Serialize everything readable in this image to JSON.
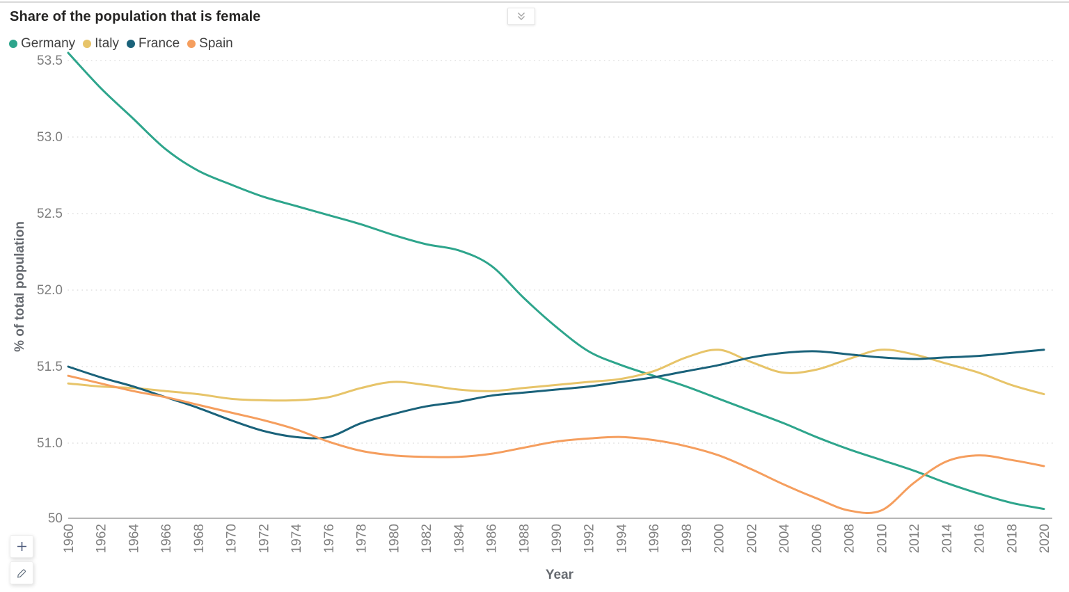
{
  "header": {
    "title": "Share of the population that is female",
    "collapse_icon": "double-chevron-down"
  },
  "toolbar": {
    "zoom_in_icon": "plus",
    "edit_icon": "pencil"
  },
  "colors": {
    "title_text": "#252423",
    "legend_text": "#404040",
    "axis_tick_text": "#7f7f7f",
    "axis_title_text": "#666a70",
    "gridline": "#e3e3e3",
    "axis_line": "#9e9e9e",
    "plus_icon": "#4d5b7c",
    "pencil_icon": "#5d6b7a",
    "chevron_icon": "#a3a3a3",
    "button_border": "#e4e4e4"
  },
  "chart_data": {
    "type": "line",
    "title": "Share of the population that is female",
    "xlabel": "Year",
    "ylabel": "% of total population",
    "legend_position": "top",
    "grid": "horizontal-dotted",
    "ylim": [
      50,
      53.5
    ],
    "x": [
      1960,
      1962,
      1964,
      1966,
      1968,
      1970,
      1972,
      1974,
      1976,
      1978,
      1980,
      1982,
      1984,
      1986,
      1988,
      1990,
      1992,
      1994,
      1996,
      1998,
      2000,
      2002,
      2004,
      2006,
      2008,
      2010,
      2012,
      2014,
      2016,
      2018,
      2020
    ],
    "y_ticks": [
      {
        "label": "53.5",
        "value": 53.5
      },
      {
        "label": "53.0",
        "value": 53.0
      },
      {
        "label": "52.5",
        "value": 52.5
      },
      {
        "label": "52.0",
        "value": 52.0
      },
      {
        "label": "51.5",
        "value": 51.5
      },
      {
        "label": "51.0",
        "value": 51.0
      },
      {
        "label": "50",
        "value": 50
      }
    ],
    "series": [
      {
        "name": "Germany",
        "color": "#2EA58C",
        "values": [
          53.55,
          53.32,
          53.12,
          52.92,
          52.78,
          52.69,
          52.61,
          52.55,
          52.49,
          52.43,
          52.36,
          52.3,
          52.26,
          52.16,
          51.95,
          51.76,
          51.6,
          51.51,
          51.44,
          51.37,
          51.29,
          51.21,
          51.13,
          51.04,
          50.96,
          50.89,
          50.82,
          50.74,
          50.67,
          50.61,
          50.57
        ]
      },
      {
        "name": "Italy",
        "color": "#E7C469",
        "values": [
          51.39,
          51.37,
          51.36,
          51.34,
          51.32,
          51.29,
          51.28,
          51.28,
          51.3,
          51.36,
          51.4,
          51.38,
          51.35,
          51.34,
          51.36,
          51.38,
          51.4,
          51.42,
          51.47,
          51.56,
          51.61,
          51.53,
          51.46,
          51.48,
          51.55,
          51.61,
          51.58,
          51.52,
          51.46,
          51.38,
          51.32
        ]
      },
      {
        "name": "France",
        "color": "#1A627A",
        "values": [
          51.5,
          51.43,
          51.37,
          51.3,
          51.23,
          51.15,
          51.08,
          51.04,
          51.04,
          51.13,
          51.19,
          51.24,
          51.27,
          51.31,
          51.33,
          51.35,
          51.37,
          51.4,
          51.43,
          51.47,
          51.51,
          51.56,
          51.59,
          51.6,
          51.58,
          51.56,
          51.55,
          51.56,
          51.57,
          51.59,
          51.61
        ]
      },
      {
        "name": "Spain",
        "color": "#F59E5E",
        "values": [
          51.44,
          51.39,
          51.34,
          51.3,
          51.25,
          51.2,
          51.15,
          51.09,
          51.01,
          50.95,
          50.92,
          50.91,
          50.91,
          50.93,
          50.97,
          51.01,
          51.03,
          51.04,
          51.02,
          50.98,
          50.92,
          50.83,
          50.73,
          50.64,
          50.56,
          50.56,
          50.74,
          50.88,
          50.92,
          50.89,
          50.85
        ]
      }
    ]
  }
}
